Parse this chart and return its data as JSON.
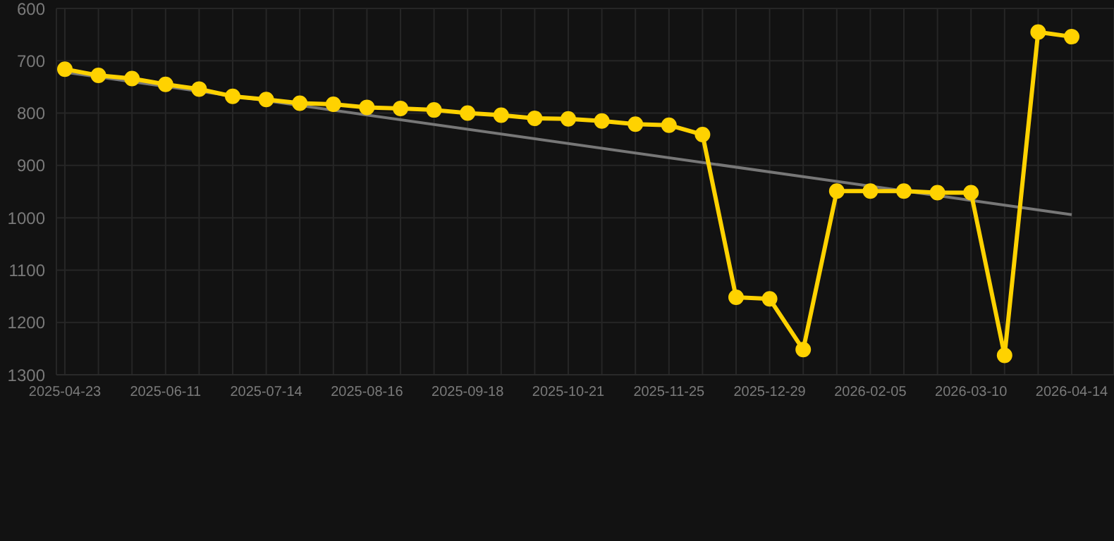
{
  "chart_data": {
    "type": "line",
    "categories": [
      "2025-04-23",
      null,
      null,
      "2025-06-11",
      null,
      null,
      "2025-07-14",
      null,
      null,
      "2025-08-16",
      null,
      null,
      "2025-09-18",
      null,
      null,
      "2025-10-21",
      null,
      null,
      "2025-11-25",
      null,
      null,
      "2025-12-29",
      null,
      null,
      "2026-02-05",
      null,
      null,
      "2026-03-10",
      null,
      null,
      "2026-04-14"
    ],
    "series": [
      {
        "color": "#ffd200",
        "marker": "circle",
        "values": [
          716,
          728,
          734,
          745,
          754,
          768,
          774,
          781,
          783,
          789,
          791,
          794,
          800,
          804,
          810,
          811,
          815,
          821,
          823,
          841,
          1152,
          1155,
          1252,
          949,
          949,
          949,
          952,
          952,
          1263,
          645,
          654
        ]
      },
      {
        "color": "#777777",
        "marker": "none",
        "values": [
          722,
          null,
          null,
          null,
          null,
          null,
          null,
          null,
          null,
          null,
          null,
          null,
          null,
          null,
          null,
          null,
          null,
          null,
          null,
          null,
          null,
          null,
          null,
          null,
          null,
          null,
          null,
          null,
          null,
          null,
          994
        ]
      }
    ],
    "ylim": [
      1300,
      600
    ],
    "yticks": [
      600,
      700,
      800,
      900,
      1000,
      1100,
      1200,
      1300
    ],
    "grid": true
  }
}
